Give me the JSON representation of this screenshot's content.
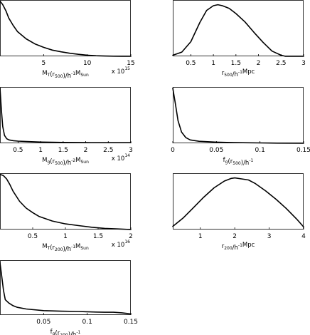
{
  "chart_data": [
    {
      "type": "line",
      "xlim": [
        0,
        15
      ],
      "xticks": [
        5,
        10,
        15
      ],
      "xtick_labels": [
        "5",
        "10",
        "15"
      ],
      "xlabel": {
        "parts": [
          [
            "M",
            ""
          ],
          [
            "T",
            "sub"
          ],
          [
            "(r",
            ""
          ],
          [
            "500",
            "sub"
          ],
          [
            ")/h",
            ""
          ],
          [
            "-1",
            "sup"
          ],
          [
            "M",
            ""
          ],
          [
            "Sun",
            "sub"
          ]
        ]
      },
      "multiplier": {
        "base": "x 10",
        "exp": "15"
      },
      "x": [
        0,
        0.3,
        0.7,
        1.0,
        1.5,
        2.0,
        3.0,
        4.0,
        5.0,
        6.0,
        7.0,
        8.0,
        9.0,
        10.0,
        11.0,
        12.0,
        13.0,
        14.0,
        15.0
      ],
      "y": [
        0.98,
        0.92,
        0.8,
        0.68,
        0.55,
        0.44,
        0.31,
        0.22,
        0.16,
        0.11,
        0.08,
        0.055,
        0.035,
        0.02,
        0.01,
        0.005,
        0.002,
        0.001,
        0
      ],
      "ylim": [
        0,
        1
      ]
    },
    {
      "type": "line",
      "xlim": [
        0.1,
        3
      ],
      "xticks": [
        0.5,
        1,
        1.5,
        2,
        2.5,
        3
      ],
      "xtick_labels": [
        "0.5",
        "1",
        "1.5",
        "2",
        "2.5",
        "3"
      ],
      "xlabel": {
        "parts": [
          [
            "r",
            ""
          ],
          [
            "500",
            "sub"
          ],
          [
            "/h",
            ""
          ],
          [
            "-1",
            "sup"
          ],
          [
            "Mpc",
            ""
          ]
        ]
      },
      "x": [
        0.1,
        0.3,
        0.5,
        0.7,
        0.85,
        1.0,
        1.1,
        1.2,
        1.35,
        1.5,
        1.7,
        1.9,
        2.1,
        2.3,
        2.5,
        2.6,
        3.0
      ],
      "y": [
        0.02,
        0.08,
        0.28,
        0.65,
        0.88,
        0.97,
        0.99,
        0.97,
        0.92,
        0.82,
        0.66,
        0.46,
        0.27,
        0.1,
        0.02,
        0.0,
        0.0
      ],
      "ylim": [
        0,
        1.08
      ]
    },
    {
      "type": "line",
      "xlim": [
        0.1,
        3
      ],
      "xticks": [
        0.5,
        1,
        1.5,
        2,
        2.5,
        3
      ],
      "xtick_labels": [
        "0.5",
        "1",
        "1.5",
        "2",
        "2.5",
        "3"
      ],
      "xlabel": {
        "parts": [
          [
            "M",
            ""
          ],
          [
            "g",
            "sub"
          ],
          [
            "(r",
            ""
          ],
          [
            "500",
            "sub"
          ],
          [
            ")/h",
            ""
          ],
          [
            "-2",
            "sup"
          ],
          [
            "M",
            ""
          ],
          [
            "Sun",
            "sub"
          ]
        ]
      },
      "multiplier": {
        "base": "x 10",
        "exp": "14"
      },
      "x": [
        0.1,
        0.13,
        0.16,
        0.2,
        0.25,
        0.3,
        0.4,
        0.5,
        0.7,
        1.0,
        1.5,
        2.0,
        2.5,
        3.0
      ],
      "y": [
        0.98,
        0.6,
        0.3,
        0.14,
        0.08,
        0.06,
        0.045,
        0.038,
        0.03,
        0.022,
        0.015,
        0.012,
        0.01,
        0.01
      ],
      "ylim": [
        0,
        1
      ]
    },
    {
      "type": "line",
      "xlim": [
        0,
        0.15
      ],
      "xticks": [
        0,
        0.05,
        0.1,
        0.15
      ],
      "xtick_labels": [
        "0",
        "0.05",
        "0.1",
        "0.15"
      ],
      "xlabel": {
        "parts": [
          [
            "f",
            ""
          ],
          [
            "g",
            "sub"
          ],
          [
            "(r",
            ""
          ],
          [
            "500",
            "sub"
          ],
          [
            ")/h",
            ""
          ],
          [
            "-1",
            "sup"
          ]
        ]
      },
      "x": [
        0,
        0.003,
        0.006,
        0.01,
        0.015,
        0.02,
        0.03,
        0.05,
        0.07,
        0.1,
        0.12,
        0.15
      ],
      "y": [
        0.98,
        0.7,
        0.4,
        0.2,
        0.1,
        0.06,
        0.035,
        0.02,
        0.012,
        0.006,
        0.003,
        0
      ],
      "ylim": [
        0,
        1
      ]
    },
    {
      "type": "line",
      "xlim": [
        0,
        2
      ],
      "xticks": [
        0.5,
        1,
        1.5,
        2
      ],
      "xtick_labels": [
        "0.5",
        "1",
        "1.5",
        "2"
      ],
      "xlabel": {
        "parts": [
          [
            "M",
            ""
          ],
          [
            "T",
            "sub"
          ],
          [
            "(r",
            ""
          ],
          [
            "200",
            "sub"
          ],
          [
            ")/h",
            ""
          ],
          [
            "-1",
            "sup"
          ],
          [
            "M",
            ""
          ],
          [
            "Sun",
            "sub"
          ]
        ]
      },
      "multiplier": {
        "base": "x 10",
        "exp": "16"
      },
      "x": [
        0,
        0.05,
        0.1,
        0.15,
        0.2,
        0.3,
        0.4,
        0.5,
        0.6,
        0.8,
        1.0,
        1.2,
        1.4,
        1.6,
        1.8,
        2.0
      ],
      "y": [
        0.98,
        0.96,
        0.9,
        0.8,
        0.68,
        0.5,
        0.38,
        0.3,
        0.23,
        0.15,
        0.1,
        0.07,
        0.04,
        0.02,
        0.01,
        0
      ],
      "ylim": [
        0,
        1
      ]
    },
    {
      "type": "line",
      "xlim": [
        0.2,
        4
      ],
      "xticks": [
        1,
        2,
        3,
        4
      ],
      "xtick_labels": [
        "1",
        "2",
        "3",
        "4"
      ],
      "xlabel": {
        "parts": [
          [
            "r",
            ""
          ],
          [
            "200",
            "sub"
          ],
          [
            "/h",
            ""
          ],
          [
            "-1",
            "sup"
          ],
          [
            "Mpc",
            ""
          ]
        ]
      },
      "x": [
        0.2,
        0.5,
        0.8,
        1.1,
        1.4,
        1.7,
        1.9,
        2.0,
        2.2,
        2.4,
        2.6,
        2.9,
        3.2,
        3.5,
        3.8,
        4.0
      ],
      "y": [
        0.06,
        0.22,
        0.42,
        0.62,
        0.8,
        0.93,
        0.98,
        0.99,
        0.97,
        0.95,
        0.88,
        0.74,
        0.58,
        0.4,
        0.2,
        0.05
      ],
      "ylim": [
        0,
        1.08
      ]
    },
    {
      "type": "line",
      "xlim": [
        0,
        0.15
      ],
      "xticks": [
        0.05,
        0.1,
        0.15
      ],
      "xtick_labels": [
        "0.05",
        "0.1",
        "0.15"
      ],
      "xlabel": {
        "parts": [
          [
            "f",
            ""
          ],
          [
            "g",
            "sub"
          ],
          [
            "(r",
            ""
          ],
          [
            "200",
            "sub"
          ],
          [
            ")/h",
            ""
          ],
          [
            "-1",
            "sup"
          ]
        ]
      },
      "x": [
        0,
        0.002,
        0.004,
        0.006,
        0.01,
        0.015,
        0.02,
        0.03,
        0.05,
        0.07,
        0.09,
        0.1,
        0.11,
        0.12,
        0.13,
        0.14,
        0.145,
        0.15
      ],
      "y": [
        0.95,
        0.7,
        0.45,
        0.28,
        0.22,
        0.17,
        0.14,
        0.11,
        0.08,
        0.07,
        0.065,
        0.06,
        0.055,
        0.05,
        0.05,
        0.04,
        0.03,
        0.02
      ],
      "ylim": [
        0,
        1
      ]
    }
  ]
}
